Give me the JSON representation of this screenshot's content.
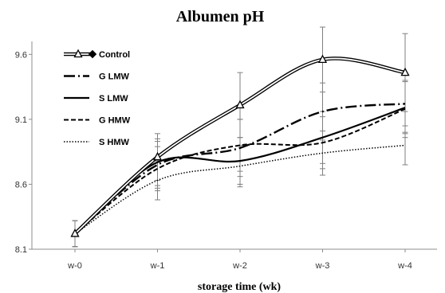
{
  "chart_data": {
    "type": "line",
    "title": "Albumen pH",
    "xlabel": "storage time (wk)",
    "ylabel": "",
    "categories": [
      "w-0",
      "w-1",
      "w-2",
      "w-3",
      "w-4"
    ],
    "ylim": [
      8.1,
      9.7
    ],
    "yticks": [
      "8.1",
      "8.6",
      "9.1",
      "9.6"
    ],
    "grid": false,
    "legend_position": "top-left",
    "series": [
      {
        "name": "Control",
        "style": "double",
        "marker": "triangle",
        "values": [
          8.22,
          8.81,
          9.21,
          9.56,
          9.46
        ],
        "errors": [
          0.1,
          0.18,
          0.25,
          0.25,
          0.3
        ]
      },
      {
        "name": "G LMW",
        "style": "dashdot",
        "values": [
          8.22,
          8.75,
          8.88,
          9.16,
          9.22
        ],
        "errors": [
          0.1,
          0.18,
          0.22,
          0.22,
          0.22
        ]
      },
      {
        "name": "S LMW",
        "style": "solid",
        "values": [
          8.22,
          8.77,
          8.78,
          8.96,
          9.19
        ],
        "errors": [
          0.1,
          0.18,
          0.18,
          0.2,
          0.2
        ]
      },
      {
        "name": "G HMW",
        "style": "dashed",
        "values": [
          8.22,
          8.72,
          8.9,
          8.92,
          9.18
        ],
        "errors": [
          0.1,
          0.17,
          0.2,
          0.2,
          0.22
        ]
      },
      {
        "name": "S HMW",
        "style": "dotted",
        "values": [
          8.22,
          8.63,
          8.74,
          8.84,
          8.9
        ],
        "errors": [
          0.1,
          0.15,
          0.16,
          0.17,
          0.15
        ]
      }
    ],
    "colors": {
      "lines": "#000000",
      "error_bars": "#7f7f7f",
      "axis": "#8c8c8c"
    }
  }
}
